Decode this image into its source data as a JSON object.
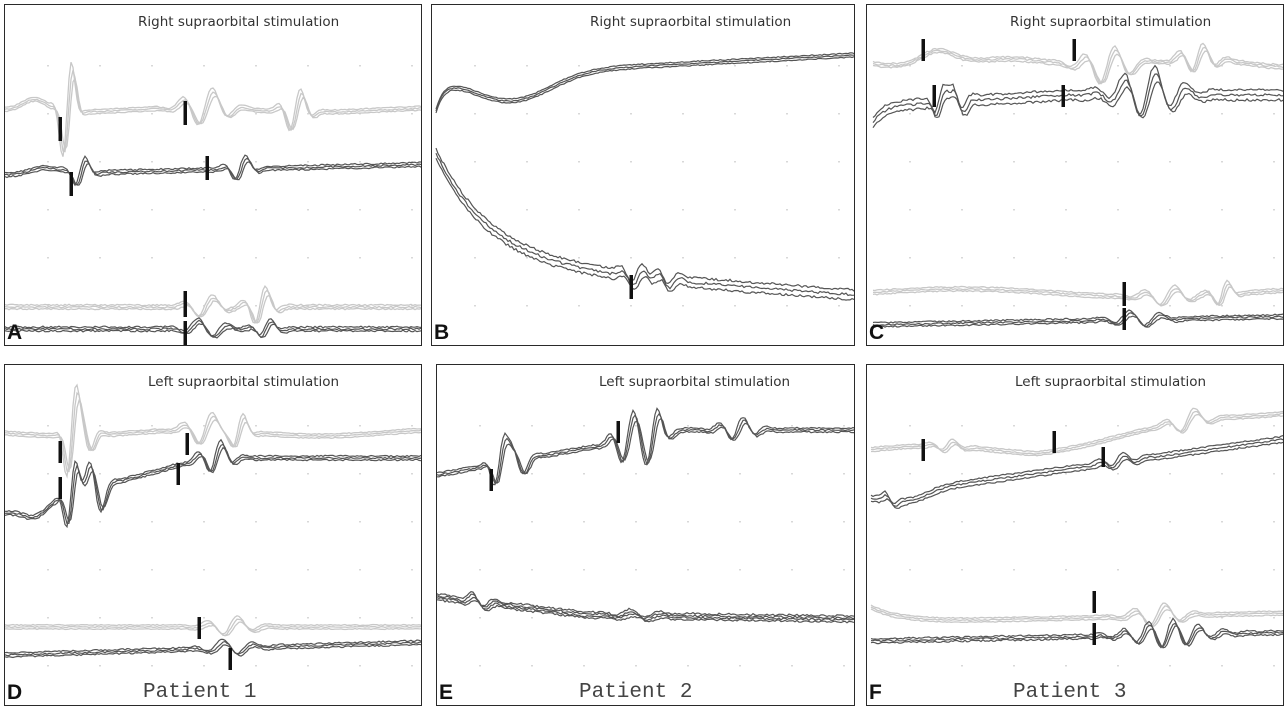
{
  "panels": [
    {
      "id": "A",
      "label": "A",
      "title": "Right supraorbital stimulation",
      "patient": ""
    },
    {
      "id": "B",
      "label": "B",
      "title": "Right supraorbital stimulation",
      "patient": ""
    },
    {
      "id": "C",
      "label": "C",
      "title": "Right supraorbital stimulation",
      "patient": ""
    },
    {
      "id": "D",
      "label": "D",
      "title": "Left supraorbital stimulation",
      "patient": "Patient 1"
    },
    {
      "id": "E",
      "label": "E",
      "title": "Left supraorbital stimulation",
      "patient": "Patient 2"
    },
    {
      "id": "F",
      "label": "F",
      "title": "Left supraorbital stimulation",
      "patient": "Patient 3"
    }
  ]
}
